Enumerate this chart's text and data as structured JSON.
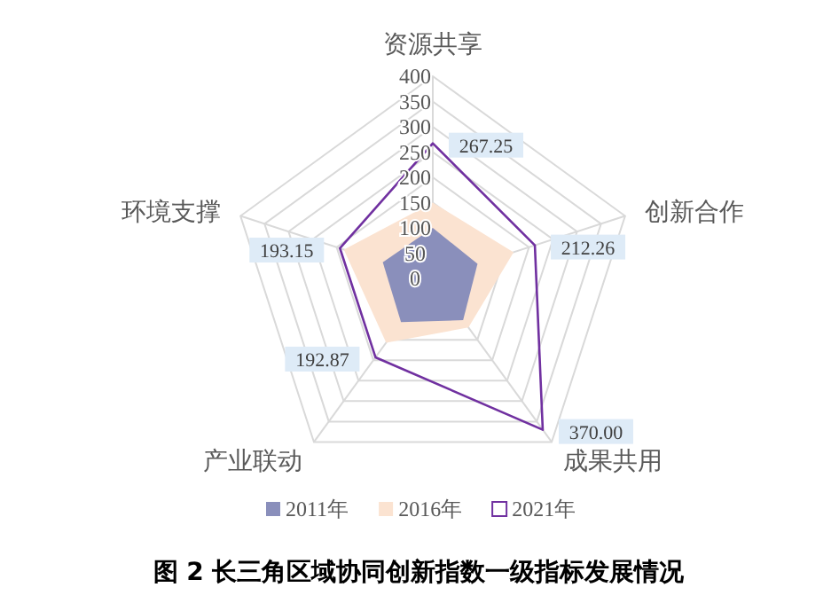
{
  "chart_data": {
    "type": "radar",
    "title": "图 2  长三角区域协同创新指数一级指标发展情况",
    "categories": [
      "资源共享",
      "创新合作",
      "成果共用",
      "产业联动",
      "环境支撑"
    ],
    "ylim": [
      0,
      400
    ],
    "yticks": [
      0,
      50,
      100,
      150,
      200,
      250,
      300,
      350,
      400
    ],
    "grid": true,
    "legend": "bottom",
    "series": [
      {
        "name": "2016年",
        "color": "#fbe3d1",
        "values": [
          150,
          168,
          120,
          157,
          185
        ]
      },
      {
        "name": "2011年",
        "color": "#8a8fbb",
        "values": [
          100,
          93,
          102,
          107,
          104
        ]
      },
      {
        "name": "2021年",
        "color": "#7030a0",
        "values": [
          267.25,
          212.26,
          370.0,
          192.87,
          193.15
        ],
        "value_labels": [
          "267.25",
          "212.26",
          "370.00",
          "192.87",
          "193.15"
        ]
      }
    ]
  }
}
